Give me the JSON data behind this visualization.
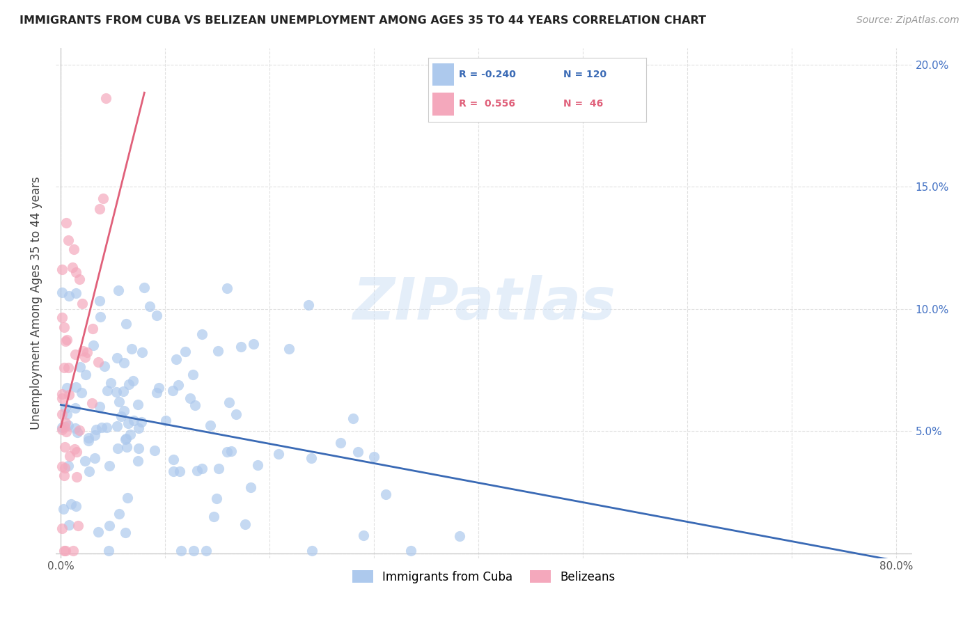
{
  "title": "IMMIGRANTS FROM CUBA VS BELIZEAN UNEMPLOYMENT AMONG AGES 35 TO 44 YEARS CORRELATION CHART",
  "source": "Source: ZipAtlas.com",
  "ylabel": "Unemployment Among Ages 35 to 44 years",
  "xlim": [
    0,
    0.8
  ],
  "ylim": [
    0,
    0.205
  ],
  "xticks": [
    0.0,
    0.1,
    0.2,
    0.3,
    0.4,
    0.5,
    0.6,
    0.7,
    0.8
  ],
  "xticklabels": [
    "0.0%",
    "",
    "",
    "",
    "",
    "",
    "",
    "",
    "80.0%"
  ],
  "yticks": [
    0.0,
    0.05,
    0.1,
    0.15,
    0.2
  ],
  "yticklabels_right": [
    "",
    "5.0%",
    "10.0%",
    "15.0%",
    "20.0%"
  ],
  "cuba_color": "#adc9ed",
  "belize_color": "#f4a8bc",
  "cuba_R": -0.24,
  "cuba_N": 120,
  "belize_R": 0.556,
  "belize_N": 46,
  "cuba_line_color": "#3a6ab5",
  "belize_line_color": "#e0607a",
  "grid_color": "#e0e0e0",
  "background_color": "#ffffff",
  "legend_r1": "R = -0.240",
  "legend_n1": "N = 120",
  "legend_r2": "R =  0.556",
  "legend_n2": "N =  46",
  "watermark": "ZIPatlas",
  "legend_bottom_1": "Immigrants from Cuba",
  "legend_bottom_2": "Belizeans"
}
